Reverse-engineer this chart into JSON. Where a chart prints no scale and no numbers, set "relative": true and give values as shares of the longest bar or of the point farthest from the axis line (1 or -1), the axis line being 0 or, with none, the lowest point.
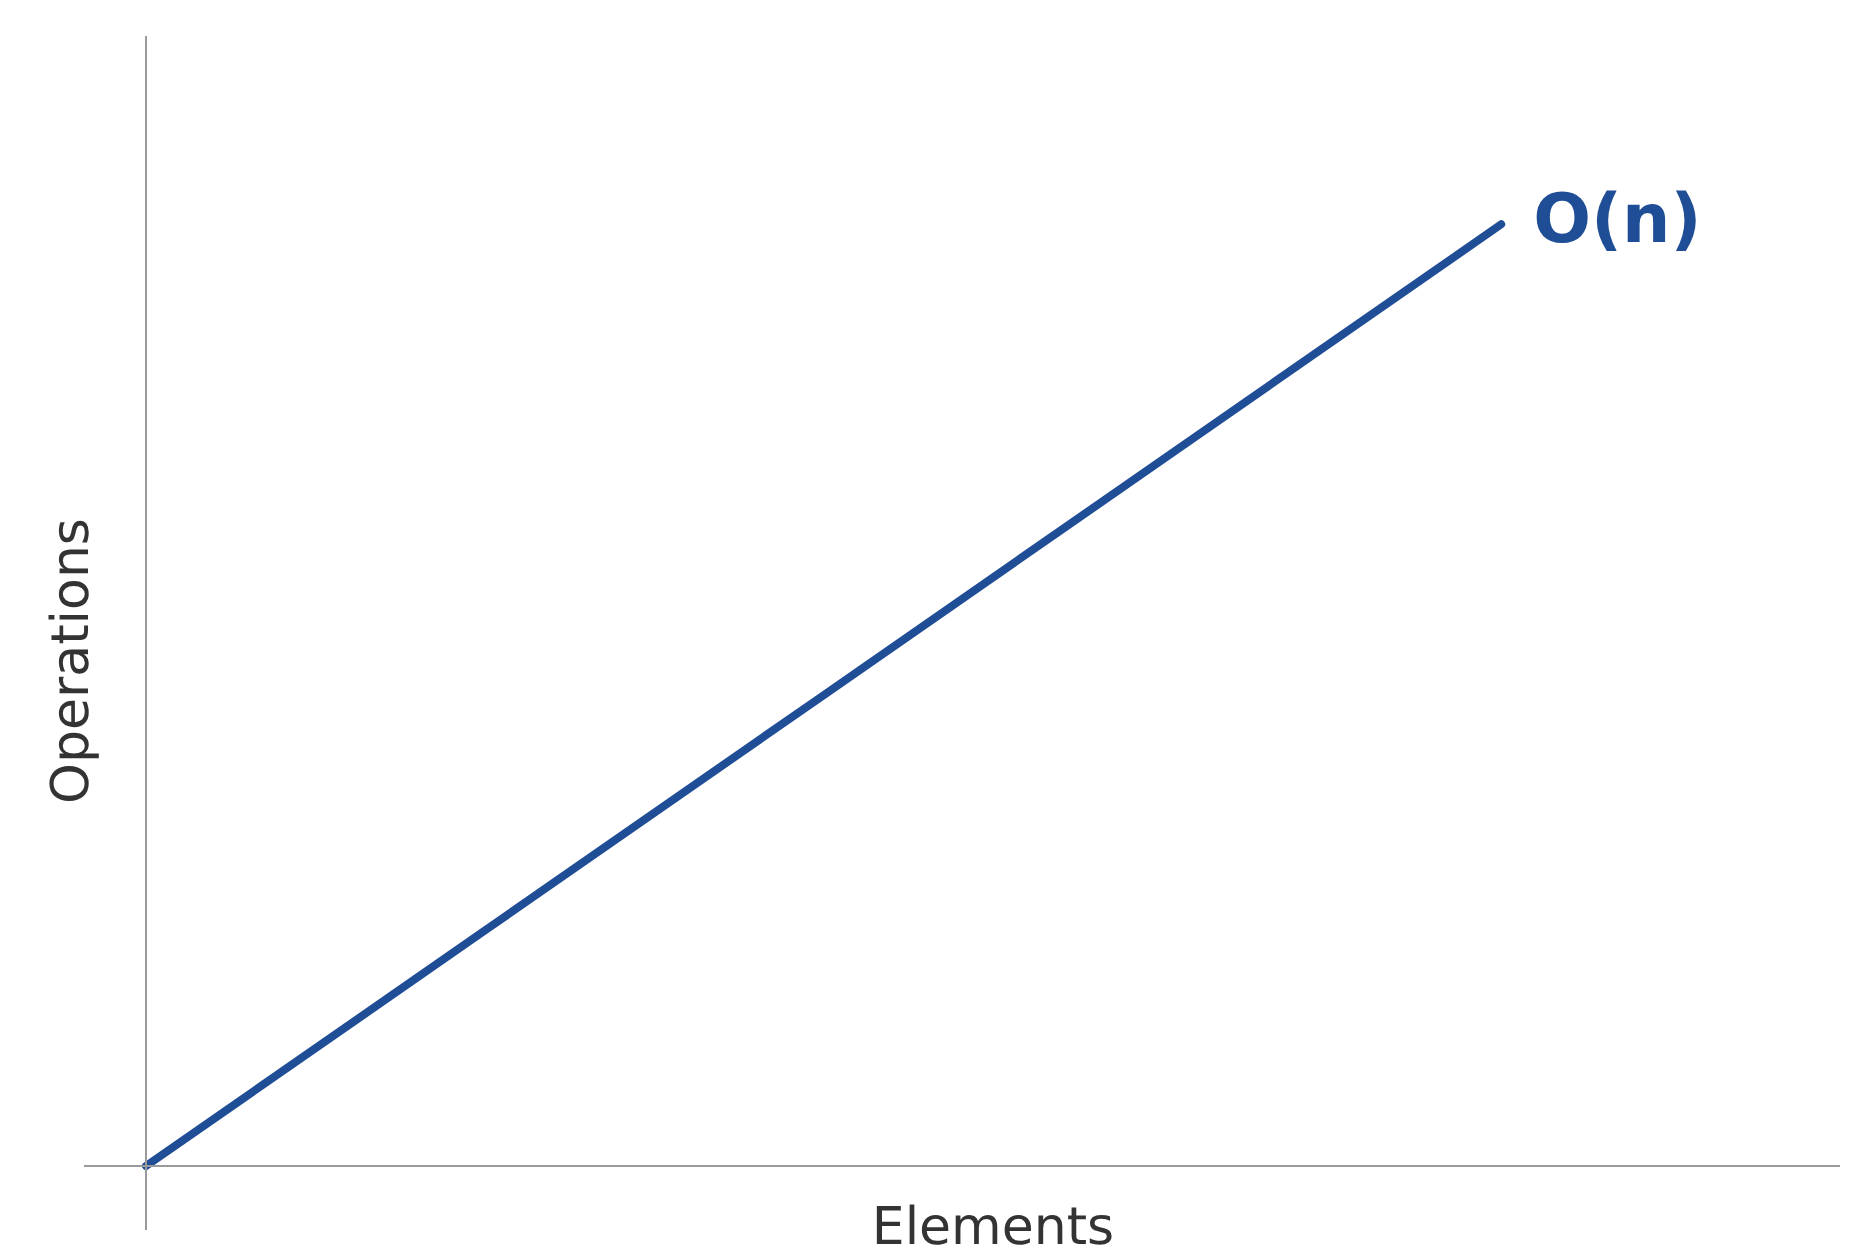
{
  "chart_data": {
    "type": "line",
    "relative": true,
    "xlabel": "Elements",
    "ylabel": "Operations",
    "categories": [
      null,
      null,
      null,
      null,
      null,
      null
    ],
    "series": [
      {
        "name": "O(n)",
        "color": "#1f4e96",
        "values": [
          0,
          0.25,
          0.5,
          0.75,
          1,
          null
        ]
      }
    ]
  }
}
